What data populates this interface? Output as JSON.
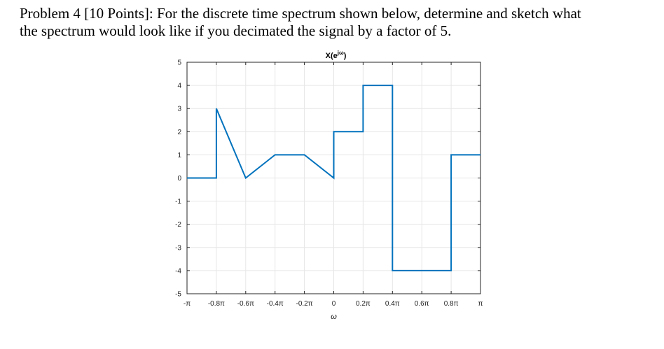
{
  "problem": {
    "line1": "Problem 4 [10 Points]: For the discrete time spectrum shown below, determine and sketch what",
    "line2": "the spectrum would look like if you decimated the signal by a factor of 5."
  },
  "chart_data": {
    "type": "line",
    "title": "X(e^{jω})",
    "title_base": "X(e",
    "title_sup": "jω",
    "title_end": ")",
    "xlabel": "ω",
    "ylabel": "",
    "x_unit": "π",
    "xlim": [
      -1,
      1
    ],
    "ylim": [
      -5,
      5
    ],
    "grid": true,
    "series": [
      {
        "color": "#0072BD",
        "x": [
          -1,
          -0.8,
          -0.8,
          -0.6,
          -0.4,
          -0.2,
          0,
          0,
          0.2,
          0.2,
          0.4,
          0.4,
          0.8,
          0.8,
          1
        ],
        "y": [
          0,
          0,
          3,
          0,
          1,
          1,
          0,
          2,
          2,
          4,
          4,
          -4,
          -4,
          1,
          1
        ]
      }
    ],
    "xticks": [
      {
        "value": -1,
        "label": "-π"
      },
      {
        "value": -0.8,
        "label": "-0.8π"
      },
      {
        "value": -0.6,
        "label": "-0.6π"
      },
      {
        "value": -0.4,
        "label": "-0.4π"
      },
      {
        "value": -0.2,
        "label": "-0.2π"
      },
      {
        "value": 0,
        "label": "0"
      },
      {
        "value": 0.2,
        "label": "0.2π"
      },
      {
        "value": 0.4,
        "label": "0.4π"
      },
      {
        "value": 0.6,
        "label": "0.6π"
      },
      {
        "value": 0.8,
        "label": "0.8π"
      },
      {
        "value": 1,
        "label": "π"
      }
    ],
    "yticks": [
      {
        "value": 5,
        "label": "5"
      },
      {
        "value": 4,
        "label": "4"
      },
      {
        "value": 3,
        "label": "3"
      },
      {
        "value": 2,
        "label": "2"
      },
      {
        "value": 1,
        "label": "1"
      },
      {
        "value": 0,
        "label": "0"
      },
      {
        "value": -1,
        "label": "-1"
      },
      {
        "value": -2,
        "label": "-2"
      },
      {
        "value": -3,
        "label": "-3"
      },
      {
        "value": -4,
        "label": "-4"
      },
      {
        "value": -5,
        "label": "-5"
      }
    ]
  }
}
